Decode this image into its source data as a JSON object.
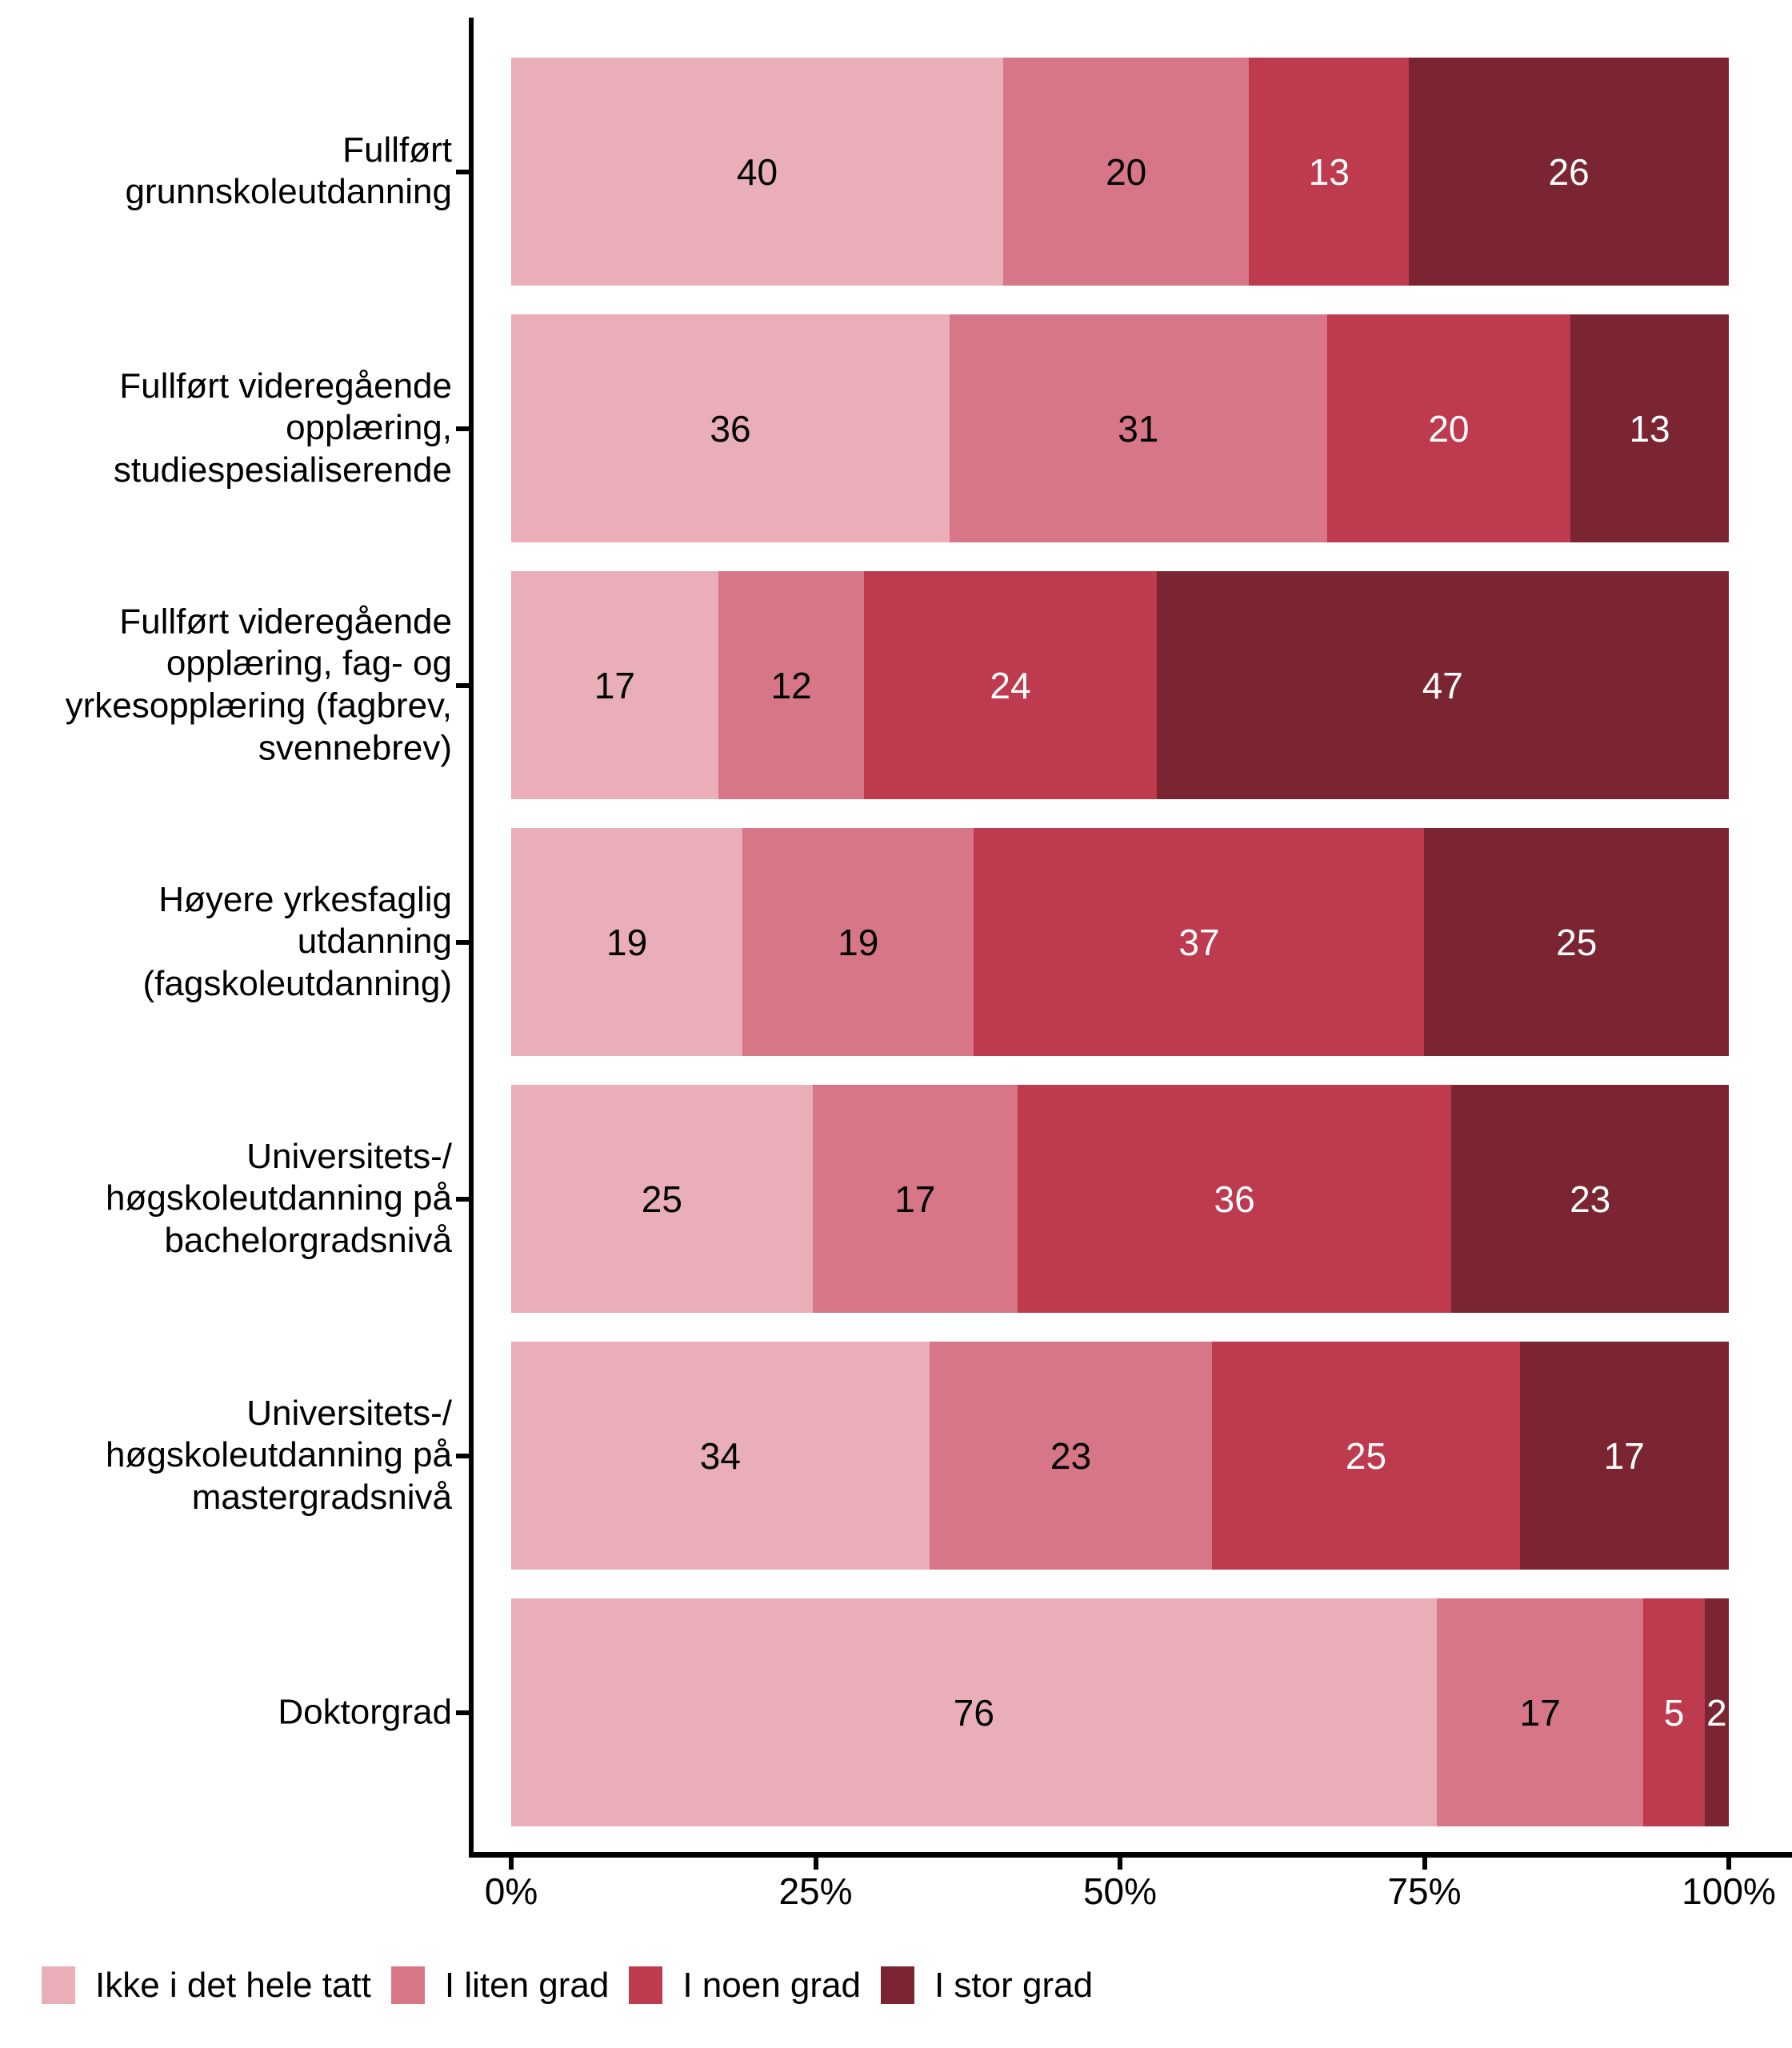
{
  "figure": {
    "background": "#FFFFFF"
  },
  "chart_data": {
    "type": "bar",
    "orientation": "horizontal",
    "stacked": true,
    "unit": "percent",
    "title": "",
    "xlabel": "",
    "ylabel": "",
    "categories": [
      "Fullført\ngrunnskoleutdanning",
      "Fullført videregående\nopplæring,\nstudiespesialiserende",
      "Fullført videregående\nopplæring, fag- og\nyrkesopplæring (fagbrev,\nsvennebrev)",
      "Høyere yrkesfaglig\nutdanning\n(fagskoleutdanning)",
      "Universitets-/\nhøgskoleutdanning på\nbachelorgradsnivå",
      "Universitets-/\nhøgskoleutdanning på\nmastergradsnivå",
      "Doktorgrad"
    ],
    "series": [
      {
        "name": "Ikke i det hele tatt",
        "color": "#E9AEB7",
        "label_color": "#000000",
        "values": [
          40,
          36,
          17,
          19,
          25,
          34,
          76
        ]
      },
      {
        "name": "I liten grad",
        "color": "#D77687",
        "label_color": "#000000",
        "values": [
          20,
          31,
          12,
          19,
          17,
          23,
          17
        ]
      },
      {
        "name": "I noen grad",
        "color": "#BE3A4E",
        "label_color": "#FFFFFF",
        "values": [
          13,
          20,
          24,
          37,
          36,
          25,
          5
        ]
      },
      {
        "name": "I stor grad",
        "color": "#7B2532",
        "label_color": "#FFFFFF",
        "values": [
          26,
          13,
          47,
          25,
          23,
          17,
          2
        ]
      }
    ],
    "x_axis": {
      "range": [
        0,
        100
      ],
      "tick_labels": [
        "0%",
        "25%",
        "50%",
        "75%",
        "100%"
      ],
      "grid": false
    },
    "legend": {
      "position": "bottom-left"
    }
  }
}
